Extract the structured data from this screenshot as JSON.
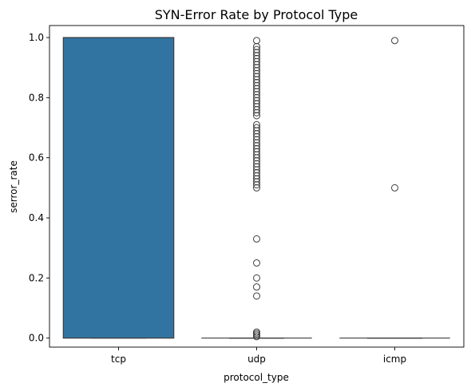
{
  "chart_data": {
    "type": "box",
    "title": "SYN-Error Rate by Protocol Type",
    "xlabel": "protocol_type",
    "ylabel": "serror_rate",
    "ylim": [
      -0.03,
      1.04
    ],
    "yticks": [
      0.0,
      0.2,
      0.4,
      0.6,
      0.8,
      1.0
    ],
    "ytick_labels": [
      "0.0",
      "0.2",
      "0.4",
      "0.6",
      "0.8",
      "1.0"
    ],
    "categories": [
      "tcp",
      "udp",
      "icmp"
    ],
    "box_color": "#3274a1",
    "line_color": "#3d3d3d",
    "boxes": [
      {
        "category": "tcp",
        "q1": 0.0,
        "median": 1.0,
        "q3": 1.0,
        "whisker_low": 0.0,
        "whisker_high": 1.0,
        "outliers": []
      },
      {
        "category": "udp",
        "q1": 0.0,
        "median": 0.0,
        "q3": 0.0,
        "whisker_low": 0.0,
        "whisker_high": 0.0,
        "outliers": [
          0.005,
          0.01,
          0.015,
          0.02,
          0.14,
          0.17,
          0.2,
          0.25,
          0.33,
          0.5,
          0.51,
          0.52,
          0.53,
          0.54,
          0.55,
          0.56,
          0.57,
          0.58,
          0.59,
          0.6,
          0.61,
          0.62,
          0.63,
          0.64,
          0.65,
          0.66,
          0.67,
          0.68,
          0.69,
          0.7,
          0.71,
          0.74,
          0.75,
          0.76,
          0.77,
          0.78,
          0.79,
          0.8,
          0.81,
          0.82,
          0.83,
          0.84,
          0.85,
          0.86,
          0.87,
          0.88,
          0.89,
          0.9,
          0.91,
          0.92,
          0.93,
          0.94,
          0.95,
          0.96,
          0.97,
          0.99
        ]
      },
      {
        "category": "icmp",
        "q1": 0.0,
        "median": 0.0,
        "q3": 0.0,
        "whisker_low": 0.0,
        "whisker_high": 0.0,
        "outliers": [
          0.5,
          0.99
        ]
      }
    ],
    "grid": false,
    "legend": "none"
  }
}
